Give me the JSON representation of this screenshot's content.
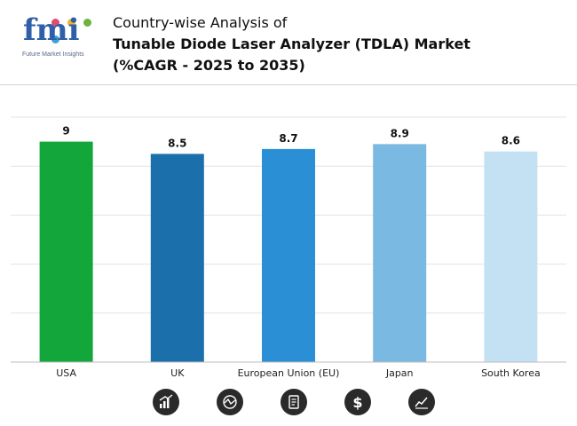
{
  "brand": {
    "logo_text": "fmi",
    "tagline": "Future Market Insights",
    "dot_colors": [
      "#e34a6f",
      "#f2b234",
      "#6db33f",
      "#3aa3d8"
    ]
  },
  "title": {
    "line1": "Country-wise Analysis of",
    "line2": "Tunable Diode Laser Analyzer (TDLA) Market",
    "line3": "(%CAGR - 2025 to 2035)"
  },
  "chart_data": {
    "type": "bar",
    "title": "Tunable Diode Laser Analyzer (TDLA) Market (%CAGR - 2025 to 2035)",
    "categories": [
      "USA",
      "UK",
      "European Union (EU)",
      "Japan",
      "South Korea"
    ],
    "values": [
      9,
      8.5,
      8.7,
      8.9,
      8.6
    ],
    "value_labels": [
      "9",
      "8.5",
      "8.7",
      "8.9",
      "8.6"
    ],
    "colors": [
      "#13a73b",
      "#1b6faa",
      "#2b8fd6",
      "#7ab9e2",
      "#c4e0f3"
    ],
    "ylim": [
      0,
      10
    ],
    "grid": true,
    "xlabel": "",
    "ylabel": ""
  },
  "footer_icons": [
    "growth-chart-icon",
    "market-trend-icon",
    "report-document-icon",
    "dollar-icon",
    "line-chart-icon"
  ]
}
